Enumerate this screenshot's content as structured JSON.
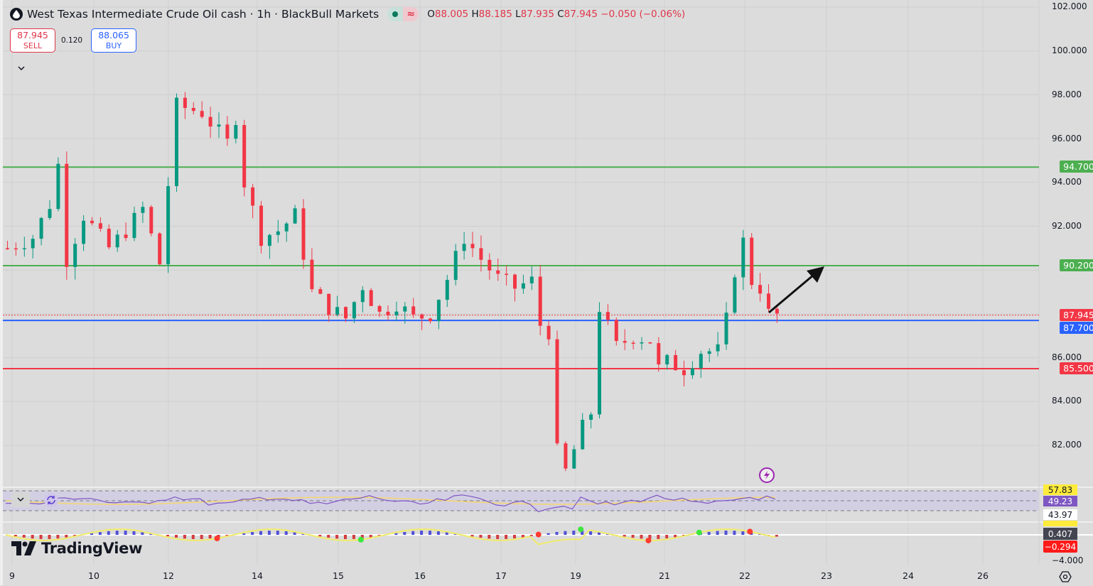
{
  "header": {
    "symbol_title": "West Texas Intermediate Crude Oil cash · 1h · BlackBull Markets",
    "symbol_icon": "oil-drop-icon",
    "market_status": [
      "market-open-dot-icon",
      "delayed-wave-icon"
    ],
    "ohlc": {
      "o_label": "O",
      "o": "88.005",
      "h_label": "H",
      "h": "88.185",
      "l_label": "L",
      "l": "87.935",
      "c_label": "C",
      "c": "87.945",
      "change": "−0.050 (−0.06%)"
    }
  },
  "trade": {
    "sell_price": "87.945",
    "sell_label": "SELL",
    "spread": "0.120",
    "buy_price": "88.065",
    "buy_label": "BUY"
  },
  "price_scale": {
    "ticks": [
      "102.000",
      "100.000",
      "98.000",
      "96.000",
      "94.000",
      "92.000",
      "86.000",
      "84.000",
      "82.000"
    ],
    "labels": [
      {
        "text": "94.700",
        "color": "#4caf50"
      },
      {
        "text": "90.200",
        "color": "#4caf50"
      },
      {
        "text": "87.945",
        "color": "#f23645"
      },
      {
        "text": "87.700",
        "color": "#2962ff"
      },
      {
        "text": "85.500",
        "color": "#f23645"
      }
    ]
  },
  "indicator_scale": {
    "rsi_upper": "57.83",
    "rsi_value": "49.23",
    "rsi_lower": "43.97",
    "osc_value": "0.407",
    "osc_signal": "−0.294",
    "osc_tick": "−4.000"
  },
  "time_axis": {
    "labels": [
      "9",
      "10",
      "12",
      "14",
      "15",
      "16",
      "17",
      "19",
      "21",
      "22",
      "23",
      "24",
      "26"
    ]
  },
  "horizontal_lines": [
    {
      "price": 94.7,
      "color": "#4caf50"
    },
    {
      "price": 90.2,
      "color": "#4caf50"
    },
    {
      "price": 87.7,
      "color": "#2962ff"
    },
    {
      "price": 85.5,
      "color": "#f23645"
    }
  ],
  "colors": {
    "up": "#089981",
    "down": "#f23645",
    "bg": "#dcdcdc"
  },
  "branding": {
    "logo_text": "TradingView"
  },
  "chart_data": {
    "type": "candlestick",
    "title": "West Texas Intermediate Crude Oil cash · 1h · BlackBull Markets",
    "x_labels": [
      "9",
      "10",
      "12",
      "14",
      "15",
      "16",
      "17",
      "19",
      "21",
      "22",
      "23",
      "24",
      "26"
    ],
    "ylim": [
      80.5,
      102
    ],
    "key_levels": [
      94.7,
      90.2,
      87.7,
      85.5
    ],
    "last_price": 87.945,
    "approx_path": [
      [
        0,
        91.0
      ],
      [
        3,
        91.5
      ],
      [
        5,
        93.0
      ],
      [
        6,
        94.8
      ],
      [
        7,
        90.5
      ],
      [
        9,
        92.5
      ],
      [
        12,
        91.0
      ],
      [
        14,
        91.8
      ],
      [
        16,
        92.8
      ],
      [
        18,
        90.3
      ],
      [
        20,
        97.5
      ],
      [
        23,
        97.2
      ],
      [
        26,
        95.8
      ],
      [
        27,
        97.0
      ],
      [
        28,
        94.0
      ],
      [
        30,
        91.5
      ],
      [
        32,
        91.8
      ],
      [
        34,
        92.5
      ],
      [
        36,
        89.0
      ],
      [
        38,
        88.3
      ],
      [
        40,
        87.8
      ],
      [
        42,
        89.3
      ],
      [
        44,
        88.0
      ],
      [
        46,
        88.5
      ],
      [
        48,
        87.8
      ],
      [
        50,
        88.0
      ],
      [
        52,
        89.6
      ],
      [
        54,
        91.5
      ],
      [
        56,
        90.5
      ],
      [
        58,
        89.6
      ],
      [
        60,
        89.2
      ],
      [
        62,
        89.5
      ],
      [
        63,
        87.5
      ],
      [
        64,
        87.2
      ],
      [
        65,
        81.7
      ],
      [
        66,
        80.8
      ],
      [
        68,
        82.8
      ],
      [
        69,
        83.5
      ],
      [
        70,
        88.3
      ],
      [
        72,
        86.5
      ],
      [
        74,
        87.0
      ],
      [
        76,
        86.8
      ],
      [
        77,
        85.5
      ],
      [
        78,
        85.8
      ],
      [
        80,
        85.5
      ],
      [
        82,
        86.3
      ],
      [
        84,
        86.3
      ],
      [
        85,
        87.7
      ],
      [
        86,
        90.0
      ],
      [
        87,
        91.3
      ],
      [
        88,
        89.5
      ],
      [
        89,
        89.2
      ],
      [
        90,
        88.0
      ],
      [
        91,
        87.945
      ]
    ],
    "indicators": {
      "rsi": {
        "value": 49.23,
        "upper": 57.83,
        "lower": 43.97
      },
      "oscillator": {
        "value": 0.407,
        "signal": -0.294
      }
    },
    "annotation": "black arrow pointing up toward 90.200 from current price"
  }
}
